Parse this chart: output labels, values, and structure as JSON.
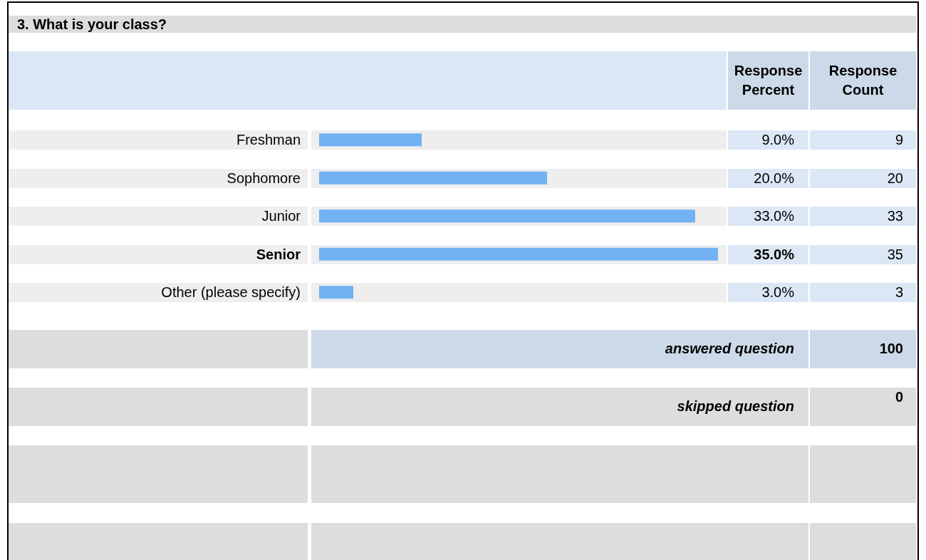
{
  "chart_data": {
    "type": "bar",
    "orientation": "horizontal",
    "title": "3. What is your class?",
    "categories": [
      "Freshman",
      "Sophomore",
      "Junior",
      "Senior",
      "Other (please specify)"
    ],
    "values": [
      9,
      20,
      33,
      35,
      3
    ],
    "value_labels": [
      "9.0%",
      "20.0%",
      "33.0%",
      "35.0%",
      "3.0%"
    ],
    "color": "#72b2f2",
    "annotations": [
      "Response Percent",
      "Response Count",
      "9",
      "20",
      "33",
      "35",
      "3",
      "answered question",
      "100",
      "skipped question",
      "0"
    ]
  }
}
